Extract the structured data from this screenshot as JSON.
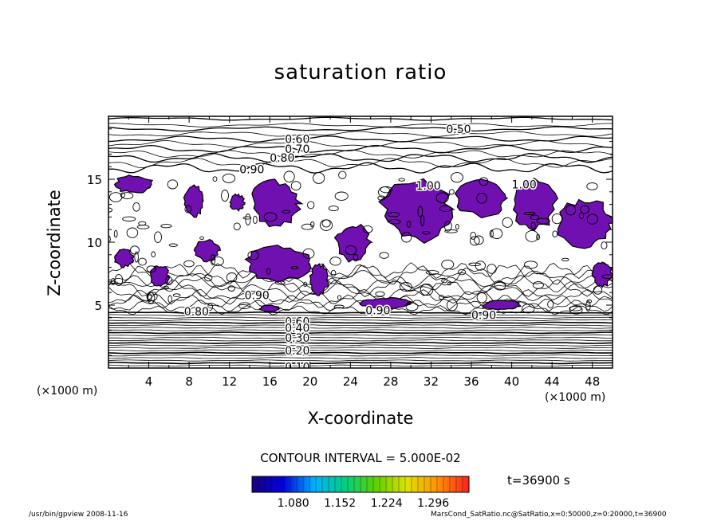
{
  "chart_data": {
    "type": "contour",
    "title": "saturation ratio",
    "xlabel": "X-coordinate",
    "ylabel": "Z-coordinate",
    "x_unit": "(×1000 m)",
    "y_unit": "(×1000 m)",
    "xlim": [
      0,
      50
    ],
    "ylim": [
      0,
      20
    ],
    "x_ticks": [
      4,
      8,
      12,
      16,
      20,
      24,
      28,
      32,
      36,
      40,
      44,
      48
    ],
    "y_ticks": [
      5,
      10,
      15
    ],
    "contour_interval_text": "CONTOUR INTERVAL = 5.000E-02",
    "contour_levels_upper": [
      {
        "label": "0.50",
        "x": 33.5,
        "z": 19.0
      },
      {
        "label": "0.60",
        "x": 17.5,
        "z": 18.2
      },
      {
        "label": "0.70",
        "x": 17.5,
        "z": 17.4
      },
      {
        "label": "0.80",
        "x": 16.0,
        "z": 16.7
      },
      {
        "label": "0.90",
        "x": 13.0,
        "z": 15.8
      },
      {
        "label": "1.00",
        "x": 30.5,
        "z": 14.5
      },
      {
        "label": "1.00",
        "x": 40.0,
        "z": 14.6
      }
    ],
    "contour_levels_lower": [
      {
        "label": "0.80",
        "x": 7.5,
        "z": 4.5
      },
      {
        "label": "0.90",
        "x": 13.5,
        "z": 5.8
      },
      {
        "label": "0.90",
        "x": 25.5,
        "z": 4.6
      },
      {
        "label": "0.90",
        "x": 36.0,
        "z": 4.2
      },
      {
        "label": "0.60",
        "x": 17.5,
        "z": 3.7
      },
      {
        "label": "0.40",
        "x": 17.5,
        "z": 3.2
      },
      {
        "label": "0.30",
        "x": 17.5,
        "z": 2.4
      },
      {
        "label": "0.20",
        "x": 17.5,
        "z": 1.4
      },
      {
        "label": "0.10",
        "x": 17.5,
        "z": 0.1
      }
    ],
    "supersaturated_regions": [
      {
        "x": [
          0.5,
          4.5
        ],
        "z": [
          13.9,
          15.3
        ]
      },
      {
        "x": [
          7.5,
          9.5
        ],
        "z": [
          12.0,
          14.5
        ]
      },
      {
        "x": [
          14.0,
          19.0
        ],
        "z": [
          11.2,
          14.9
        ]
      },
      {
        "x": [
          12.0,
          13.5
        ],
        "z": [
          12.5,
          13.8
        ]
      },
      {
        "x": [
          8.5,
          11.0
        ],
        "z": [
          8.5,
          10.2
        ]
      },
      {
        "x": [
          13.5,
          20.0
        ],
        "z": [
          6.8,
          9.8
        ]
      },
      {
        "x": [
          22.5,
          26.0
        ],
        "z": [
          8.5,
          11.5
        ]
      },
      {
        "x": [
          27.0,
          34.0
        ],
        "z": [
          10.0,
          15.2
        ]
      },
      {
        "x": [
          34.5,
          39.5
        ],
        "z": [
          12.0,
          15.0
        ]
      },
      {
        "x": [
          40.0,
          44.5
        ],
        "z": [
          11.0,
          15.0
        ]
      },
      {
        "x": [
          44.5,
          50.0
        ],
        "z": [
          9.5,
          13.5
        ]
      },
      {
        "x": [
          20.0,
          21.8
        ],
        "z": [
          5.8,
          8.3
        ]
      },
      {
        "x": [
          4.0,
          6.0
        ],
        "z": [
          6.5,
          8.2
        ]
      },
      {
        "x": [
          0.5,
          2.5
        ],
        "z": [
          8.0,
          9.5
        ]
      },
      {
        "x": [
          15.0,
          17.0
        ],
        "z": [
          4.5,
          5.0
        ]
      },
      {
        "x": [
          25.0,
          30.0
        ],
        "z": [
          4.7,
          5.6
        ]
      },
      {
        "x": [
          37.0,
          41.0
        ],
        "z": [
          4.6,
          5.4
        ]
      },
      {
        "x": [
          48.0,
          50.0
        ],
        "z": [
          6.5,
          8.5
        ]
      }
    ],
    "colorbar": {
      "ticks": [
        "1.080",
        "1.152",
        "1.224",
        "1.296"
      ],
      "stops": [
        "#1a0080",
        "#0000e0",
        "#00b0ff",
        "#00d080",
        "#60d000",
        "#e0e000",
        "#ff9000",
        "#ff2020"
      ]
    },
    "time_text": "t=36900 s",
    "fill_color": "#7010b0"
  },
  "footer": {
    "left": "/usr/bin/gpview   2008-11-16",
    "right": "MarsCond_SatRatio.nc@SatRatio,x=0:50000,z=0:20000,t=36900"
  }
}
